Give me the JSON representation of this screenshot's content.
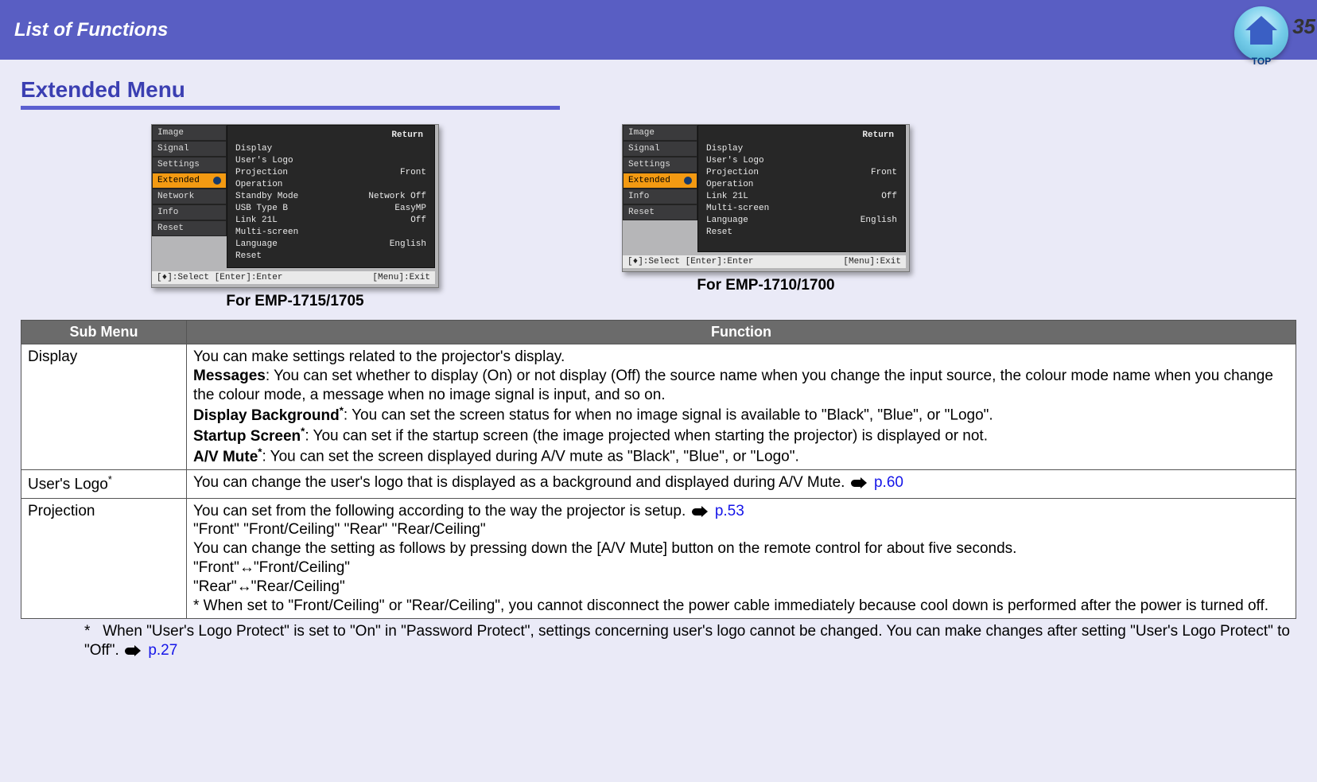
{
  "header": {
    "title": "List of Functions",
    "page_number": "35",
    "top_label": "TOP"
  },
  "section": {
    "title": "Extended Menu",
    "rule_color": "#5b5fd0"
  },
  "screenshots": {
    "left": {
      "caption": "For EMP-1715/1705",
      "tabs": [
        "Image",
        "Signal",
        "Settings",
        "Extended",
        "Network",
        "Info",
        "Reset"
      ],
      "selected_tab": "Extended",
      "return_label": "Return",
      "rows": [
        {
          "k": "Display",
          "v": ""
        },
        {
          "k": "User's Logo",
          "v": ""
        },
        {
          "k": "Projection",
          "v": "Front"
        },
        {
          "k": "Operation",
          "v": ""
        },
        {
          "k": "Standby Mode",
          "v": "Network Off"
        },
        {
          "k": "USB Type B",
          "v": "EasyMP"
        },
        {
          "k": "Link 21L",
          "v": "Off"
        },
        {
          "k": "Multi-screen",
          "v": ""
        },
        {
          "k": "Language",
          "v": "English"
        },
        {
          "k": "Reset",
          "v": ""
        }
      ],
      "footer_left": "[♦]:Select [Enter]:Enter",
      "footer_right": "[Menu]:Exit"
    },
    "right": {
      "caption": "For EMP-1710/1700",
      "tabs": [
        "Image",
        "Signal",
        "Settings",
        "Extended",
        "Info",
        "Reset"
      ],
      "selected_tab": "Extended",
      "return_label": "Return",
      "rows": [
        {
          "k": "Display",
          "v": ""
        },
        {
          "k": "User's Logo",
          "v": ""
        },
        {
          "k": "Projection",
          "v": "Front"
        },
        {
          "k": "Operation",
          "v": ""
        },
        {
          "k": "Link 21L",
          "v": "Off"
        },
        {
          "k": "Multi-screen",
          "v": ""
        },
        {
          "k": "Language",
          "v": "English"
        },
        {
          "k": "Reset",
          "v": ""
        }
      ],
      "footer_left": "[♦]:Select [Enter]:Enter",
      "footer_right": "[Menu]:Exit"
    }
  },
  "table": {
    "headers": {
      "sub": "Sub Menu",
      "func": "Function"
    },
    "rows": {
      "display": {
        "name": "Display",
        "intro": "You can make settings related to the projector's display.",
        "messages_label": "Messages",
        "messages_text": ": You can set whether to display (On) or not display (Off) the source name when you change the input source, the colour mode name when you change the colour mode, a message when no image signal is input, and so on.",
        "bg_label": "Display Background",
        "bg_text": ": You can set the screen status for when no image signal is available to \"Black\", \"Blue\", or \"Logo\".",
        "startup_label": "Startup Screen",
        "startup_text": ": You can set if the startup screen (the image projected when starting the projector) is displayed or not.",
        "av_label": "A/V Mute",
        "av_text": ": You can set the screen displayed during A/V mute as \"Black\", \"Blue\", or \"Logo\"."
      },
      "userslogo": {
        "name": "User's Logo",
        "text": "You can change the user's logo that is displayed as a background and displayed during A/V Mute. ",
        "page": "p.60"
      },
      "projection": {
        "name": "Projection",
        "l1": "You can set from the following according to the way the projector is setup. ",
        "page": "p.53",
        "l2": "\"Front\" \"Front/Ceiling\" \"Rear\" \"Rear/Ceiling\"",
        "l3": "You can change the setting as follows by pressing down the [A/V Mute] button on the remote control for about five seconds.",
        "l4a": "\"Front\"",
        "l4b": "\"Front/Ceiling\"",
        "l5a": "\"Rear\"",
        "l5b": "\"Rear/Ceiling\"",
        "l6": "* When set to \"Front/Ceiling\" or \"Rear/Ceiling\", you cannot disconnect the power cable immediately because cool down is performed after the power is turned off."
      }
    }
  },
  "footnote": {
    "marker": "*",
    "text": "When \"User's Logo Protect\" is set to \"On\" in \"Password Protect\", settings concerning user's logo cannot be changed. You can make changes after setting \"User's Logo Protect\" to \"Off\". ",
    "page": "p.27"
  },
  "style": {
    "header_bg": "#595ec3",
    "title_color": "#3b3fb2",
    "table_header_bg": "#6b6b6b",
    "link_color": "#1515e8",
    "page_bg": "#eaeaf7",
    "selected_tab_bg": "#f39a12"
  }
}
